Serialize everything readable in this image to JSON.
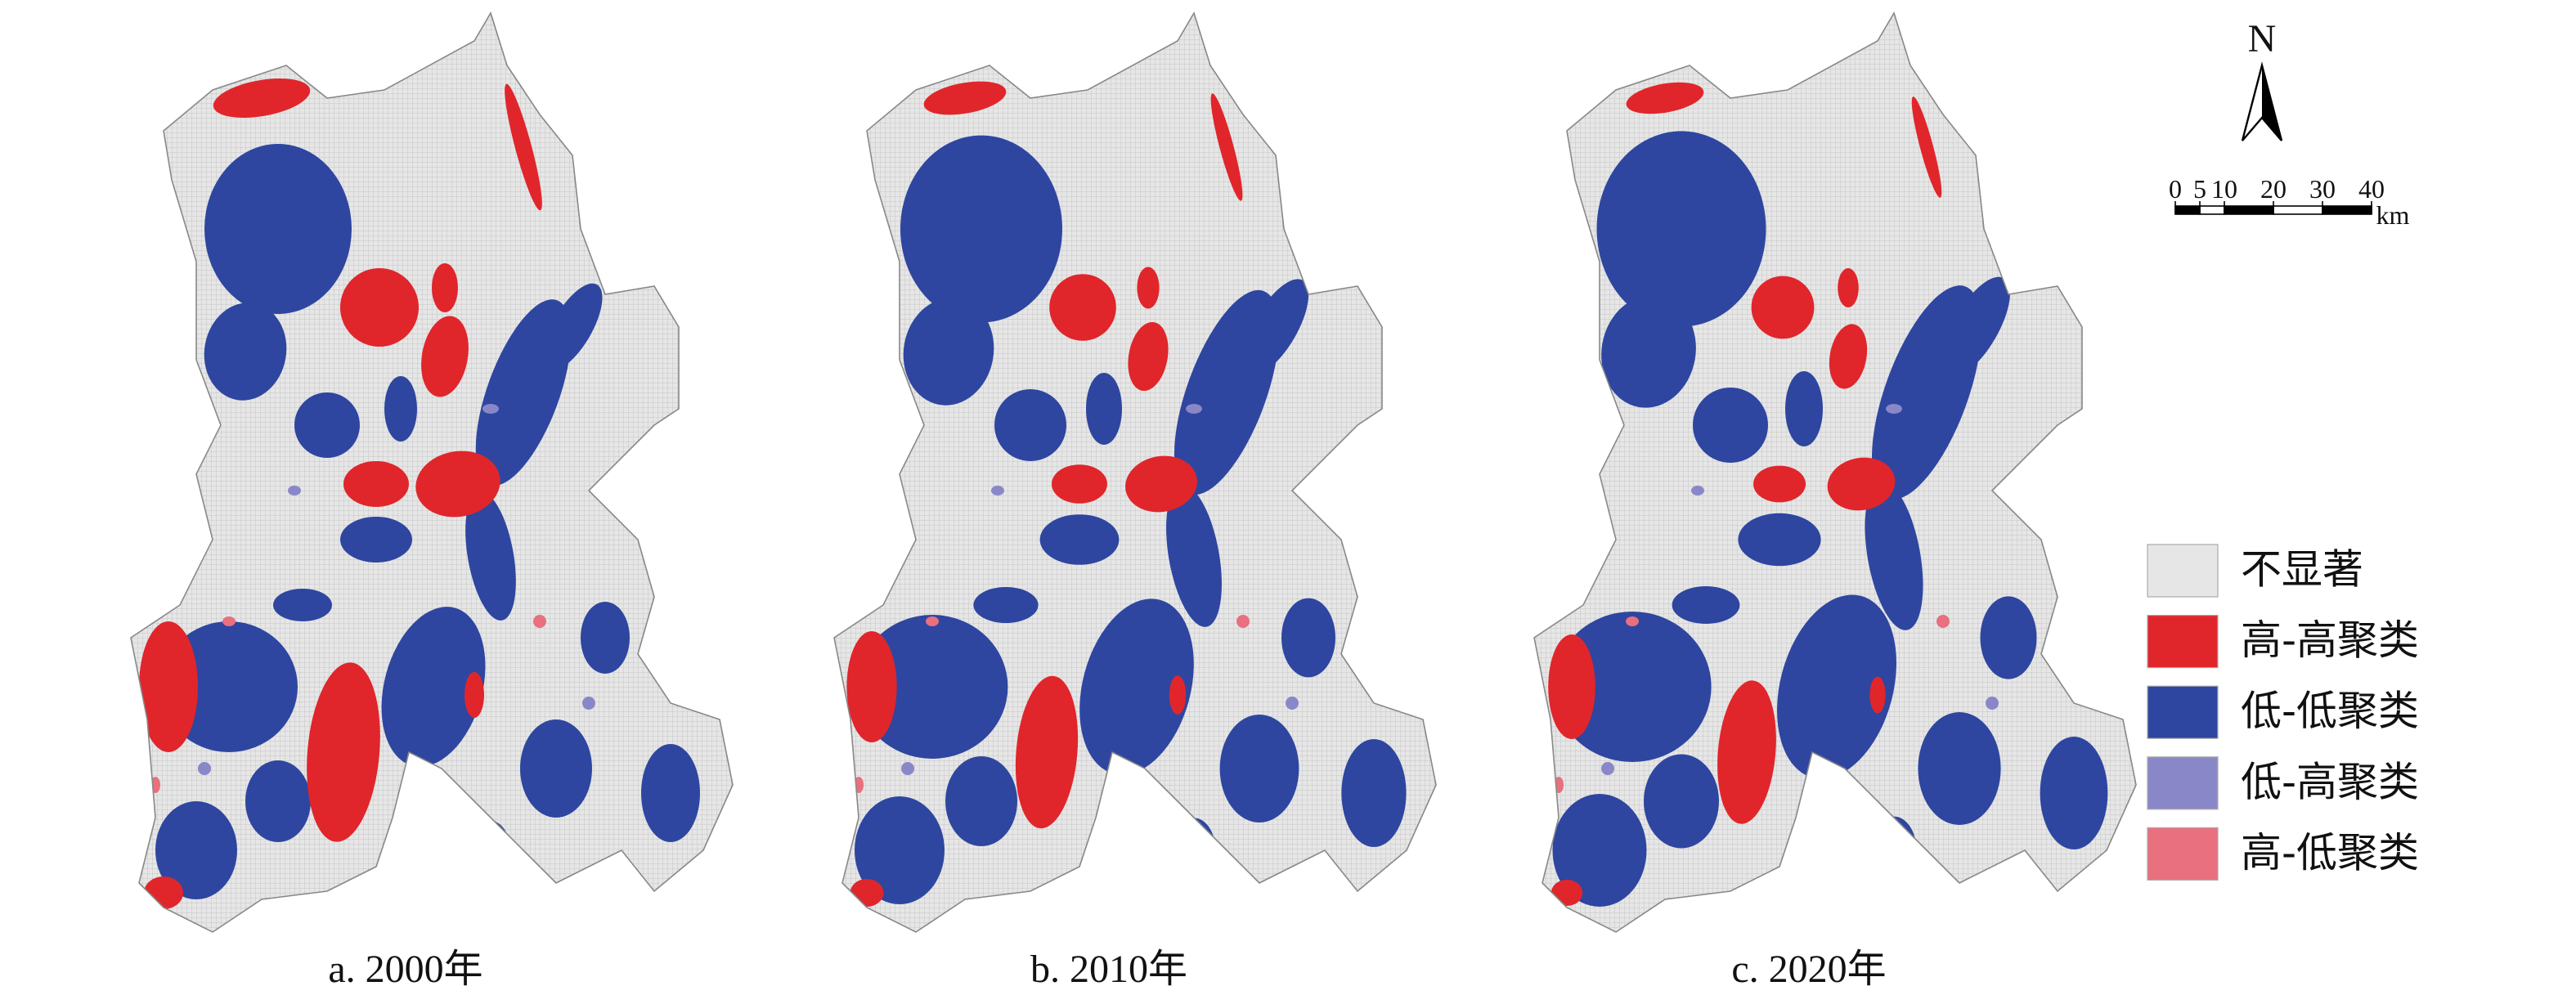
{
  "panels": [
    {
      "caption": "a. 2000年"
    },
    {
      "caption": "b. 2010年"
    },
    {
      "caption": "c. 2020年"
    }
  ],
  "legend": {
    "items": [
      {
        "label": "不显著",
        "color": "#e6e6e6"
      },
      {
        "label": "高-高聚类",
        "color": "#e0262b"
      },
      {
        "label": "低-低聚类",
        "color": "#2e46a0"
      },
      {
        "label": "低-高聚类",
        "color": "#8a87c8"
      },
      {
        "label": "高-低聚类",
        "color": "#e8707f"
      }
    ]
  },
  "north_arrow": {
    "label": "N"
  },
  "scale_bar": {
    "ticks": [
      0,
      5,
      10,
      20,
      30,
      40
    ],
    "unit": "km"
  }
}
